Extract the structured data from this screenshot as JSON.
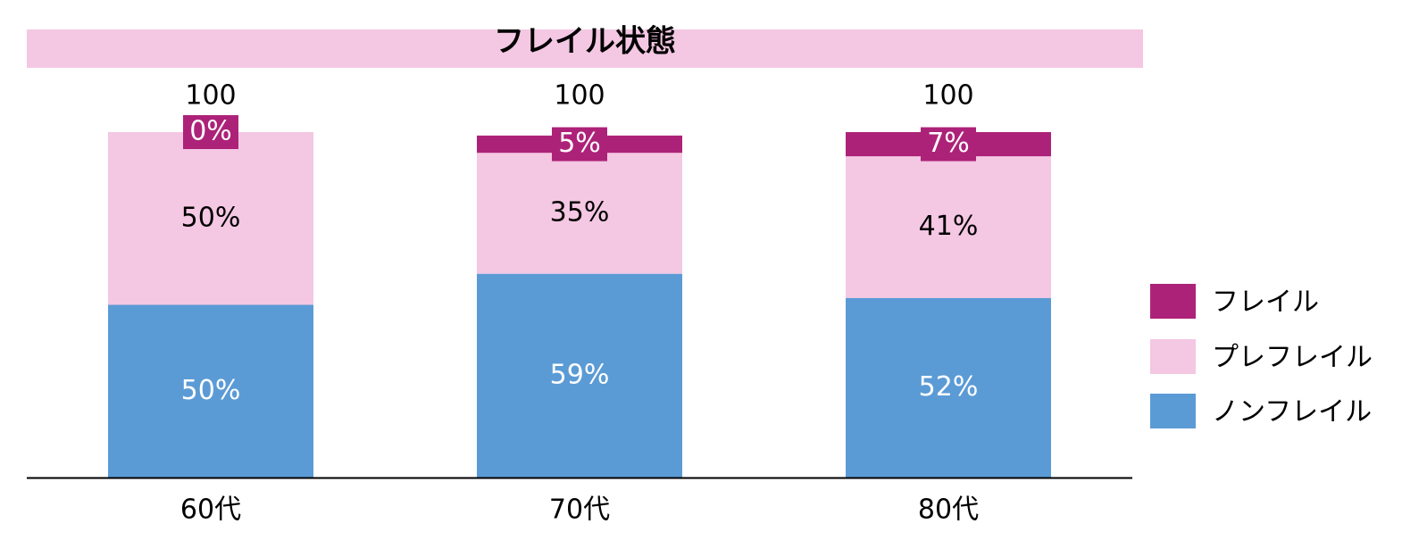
{
  "chart_data": {
    "type": "bar",
    "stacked": true,
    "title": "フレイル状態",
    "categories": [
      "60代",
      "70代",
      "80代"
    ],
    "totals": [
      100,
      100,
      100
    ],
    "series": [
      {
        "name": "ノンフレイル",
        "values": [
          50,
          59,
          52
        ],
        "color": "#5b9bd5",
        "label_color": "#ffffff"
      },
      {
        "name": "プレフレイル",
        "values": [
          50,
          35,
          41
        ],
        "color": "#f4c7e3",
        "label_color": "#000000"
      },
      {
        "name": "フレイル",
        "values": [
          0,
          5,
          7
        ],
        "color": "#ad2279",
        "label_color": "#ffffff"
      }
    ],
    "value_suffix": "%",
    "ylim": [
      0,
      100
    ],
    "grid": false,
    "legend_position": "right",
    "legend_order": [
      "フレイル",
      "プレフレイル",
      "ノンフレイル"
    ],
    "title_band_color": "#f4c7e3"
  }
}
